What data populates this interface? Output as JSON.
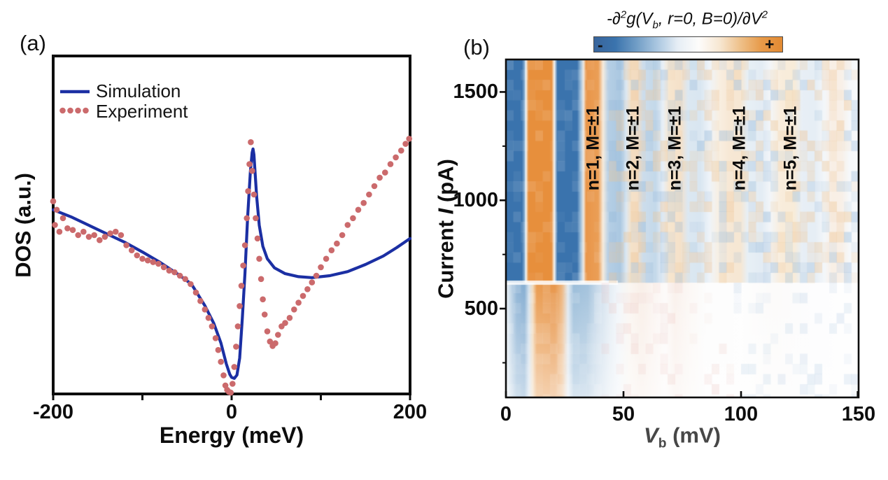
{
  "figure": {
    "panel_a_label": "(a)",
    "panel_b_label": "(b)",
    "background": "#ffffff"
  },
  "panel_a": {
    "xlabel": "Energy (meV)",
    "ylabel": "DOS (a.u.)",
    "x_tick_labels": [
      "-200",
      "0",
      "200"
    ],
    "legend": [
      {
        "label": "Simulation",
        "style": "solid-line",
        "color": "#1b2fa3"
      },
      {
        "label": "Experiment",
        "style": "dotted",
        "color": "#cb6a6c"
      }
    ]
  },
  "panel_b": {
    "ylabel_pre": "Current ",
    "ylabel_var": "I",
    "ylabel_unit": " (pA)",
    "xlabel_var": "V",
    "xlabel_sub": "b",
    "xlabel_unit": " (mV)",
    "x_tick_labels": [
      "0",
      "50",
      "100",
      "150"
    ],
    "y_tick_labels": [
      "1500",
      "1000",
      "500"
    ],
    "colorbar": {
      "t1": "-∂",
      "t1_sup": "2",
      "t2": "g(V",
      "t2_sub": "b",
      "t3": ", r=0, B=0)/∂V",
      "t3_sup": "2",
      "minus": "-",
      "plus": "+",
      "gradient": [
        "#39659c",
        "#3a73ad",
        "#6f9cc5",
        "#a9c6e0",
        "#e6eef5",
        "#fdfcfb",
        "#f7e7d2",
        "#eec089",
        "#e79a49",
        "#e28a33"
      ]
    }
  },
  "chart_data": [
    {
      "type": "line",
      "panel": "a",
      "xlabel": "Energy (meV)",
      "ylabel": "DOS (a.u.)",
      "xlim": [
        -200,
        200
      ],
      "ylim": [
        0,
        1
      ],
      "x_ticks": [
        -200,
        -100,
        0,
        100,
        200
      ],
      "x_tick_labelled": [
        -200,
        0,
        200
      ],
      "legend_position": "top-left",
      "series": [
        {
          "name": "Simulation",
          "style": "solid",
          "color": "#1b2fa3",
          "width": 4.2,
          "x": [
            -200,
            -180,
            -160,
            -140,
            -120,
            -100,
            -80,
            -60,
            -45,
            -30,
            -20,
            -12,
            -6,
            -2,
            0,
            3,
            6,
            9,
            12,
            15,
            18,
            21,
            23,
            24,
            25,
            26,
            28,
            31,
            35,
            40,
            48,
            60,
            75,
            90,
            110,
            130,
            150,
            170,
            185,
            200
          ],
          "y": [
            0.545,
            0.524,
            0.499,
            0.474,
            0.449,
            0.42,
            0.389,
            0.354,
            0.325,
            0.261,
            0.209,
            0.151,
            0.089,
            0.058,
            0.049,
            0.046,
            0.056,
            0.106,
            0.224,
            0.358,
            0.524,
            0.658,
            0.714,
            0.725,
            0.708,
            0.669,
            0.586,
            0.499,
            0.437,
            0.4,
            0.373,
            0.356,
            0.347,
            0.344,
            0.35,
            0.362,
            0.383,
            0.408,
            0.433,
            0.46
          ]
        },
        {
          "name": "Experiment",
          "style": "dotted",
          "color": "#cb6a6c",
          "dot_radius": 4.3,
          "x": [
            -200,
            -198,
            -196,
            -193,
            -189,
            -184,
            -178,
            -172,
            -166,
            -160,
            -154,
            -148,
            -142,
            -136,
            -130,
            -124,
            -118,
            -112,
            -106,
            -100,
            -94,
            -88,
            -82,
            -76,
            -70,
            -64,
            -58,
            -52,
            -46,
            -40,
            -35,
            -30,
            -26,
            -22,
            -18,
            -15,
            -12,
            -9,
            -7,
            -5,
            -3,
            -1,
            1,
            3,
            5,
            7,
            9,
            11,
            13,
            15,
            17,
            18.5,
            20,
            21.5,
            23,
            25,
            27,
            29,
            31,
            33,
            35,
            37,
            40,
            43,
            46,
            49,
            52,
            56,
            60,
            65,
            70,
            75,
            80,
            85,
            90,
            95,
            100,
            106,
            112,
            118,
            124,
            130,
            136,
            142,
            148,
            154,
            160,
            166,
            172,
            178,
            184,
            190,
            195,
            199
          ],
          "y": [
            0.57,
            0.5,
            0.545,
            0.48,
            0.52,
            0.49,
            0.485,
            0.47,
            0.48,
            0.465,
            0.47,
            0.455,
            0.465,
            0.475,
            0.48,
            0.47,
            0.44,
            0.425,
            0.41,
            0.4,
            0.395,
            0.39,
            0.385,
            0.375,
            0.365,
            0.36,
            0.35,
            0.34,
            0.325,
            0.3,
            0.275,
            0.25,
            0.225,
            0.2,
            0.165,
            0.13,
            0.095,
            0.055,
            0.025,
            0.012,
            0.006,
            0.004,
            0.03,
            0.08,
            0.14,
            0.2,
            0.26,
            0.32,
            0.38,
            0.44,
            0.52,
            0.6,
            0.68,
            0.745,
            0.66,
            0.59,
            0.52,
            0.46,
            0.4,
            0.34,
            0.28,
            0.235,
            0.185,
            0.155,
            0.142,
            0.15,
            0.175,
            0.2,
            0.21,
            0.225,
            0.25,
            0.27,
            0.29,
            0.31,
            0.33,
            0.35,
            0.375,
            0.4,
            0.425,
            0.445,
            0.47,
            0.5,
            0.52,
            0.545,
            0.565,
            0.59,
            0.615,
            0.64,
            0.655,
            0.68,
            0.7,
            0.72,
            0.74,
            0.755
          ]
        }
      ]
    },
    {
      "type": "heatmap",
      "panel": "b",
      "colorbar_title": "-∂²g(V_b, r=0, B=0)/∂V²",
      "colorbar_scale": {
        "left": "-",
        "right": "+"
      },
      "xlabel": "V_b (mV)",
      "ylabel": "Current I (pA)",
      "xlim": [
        0,
        150
      ],
      "ylim": [
        90,
        1650
      ],
      "x_ticks": [
        0,
        50,
        100,
        150
      ],
      "y_ticks": [
        1500,
        1000,
        500
      ],
      "y_minor_ticks": [
        1250,
        750,
        250
      ],
      "regime_transition_pA": 620,
      "label_center_pA": 1240,
      "resonance_labels": [
        {
          "text": "n=1, M=±1",
          "x_mV": 37.2
        },
        {
          "text": "n=2, M=±1",
          "x_mV": 54.2
        },
        {
          "text": "n=3, M=±1",
          "x_mV": 72.0
        },
        {
          "text": "n=4, M=±1",
          "x_mV": 99.4
        },
        {
          "text": "n=5, M=±1",
          "x_mV": 121.1
        }
      ],
      "band_profile_high_current": [
        [
          0,
          "#3a73ad"
        ],
        [
          6.8,
          "#3a73ad"
        ],
        [
          7.8,
          "#7ea7cc"
        ],
        [
          8.5,
          "#f0f6fa"
        ],
        [
          9.6,
          "#e78f3c"
        ],
        [
          19.4,
          "#e78f3c"
        ],
        [
          20.6,
          "#f8f6f2"
        ],
        [
          21.9,
          "#3a73ad"
        ],
        [
          30.3,
          "#3a73ad"
        ],
        [
          31.8,
          "#9dbeda"
        ],
        [
          33.0,
          "#eee9e3"
        ],
        [
          34.1,
          "#e9964a"
        ],
        [
          39.3,
          "#eb9f57"
        ],
        [
          41.3,
          "#f7ebdc"
        ],
        [
          43.4,
          "#b6cfe5"
        ],
        [
          48.6,
          "#abc8e1"
        ],
        [
          51.2,
          "#dde8f2"
        ],
        [
          53.2,
          "#f5e2c9"
        ],
        [
          55.9,
          "#f4dfc7"
        ],
        [
          58.3,
          "#cdddec"
        ],
        [
          63.7,
          "#c4d9ea"
        ],
        [
          66.8,
          "#e9f0f7"
        ],
        [
          69.4,
          "#f7e6cf"
        ],
        [
          74.3,
          "#f5e1c9"
        ],
        [
          77.4,
          "#dce8f2"
        ],
        [
          82.7,
          "#d9e6f1"
        ],
        [
          86.6,
          "#eff4f9"
        ],
        [
          90.8,
          "#f9efe1"
        ],
        [
          95.2,
          "#f7e8d5"
        ],
        [
          99.8,
          "#f6e7d3"
        ],
        [
          102.8,
          "#e8f0f6"
        ],
        [
          108.6,
          "#e3ecf4"
        ],
        [
          112.4,
          "#f3f6f9"
        ],
        [
          116.8,
          "#f9eddc"
        ],
        [
          122.6,
          "#f8ecd9"
        ],
        [
          125.8,
          "#e8eff6"
        ],
        [
          131.5,
          "#e6eef5"
        ],
        [
          135.5,
          "#f4f7fa"
        ],
        [
          138.8,
          "#f9efe5"
        ],
        [
          142.8,
          "#f8f0e8"
        ],
        [
          146,
          "#f6f8fa"
        ],
        [
          150,
          "#f8fafc"
        ]
      ],
      "band_profile_low_current": [
        [
          0,
          "#eef3f8"
        ],
        [
          1.8,
          "#cadceb"
        ],
        [
          4.6,
          "#90b5d6"
        ],
        [
          7.9,
          "#86aed2"
        ],
        [
          9.8,
          "#d6e3ee"
        ],
        [
          11.4,
          "#f2dabc"
        ],
        [
          13.1,
          "#ea9c51"
        ],
        [
          20.8,
          "#e8964a"
        ],
        [
          23.8,
          "#eeb67f"
        ],
        [
          26.4,
          "#dfe9f2"
        ],
        [
          28.8,
          "#9cbeda"
        ],
        [
          34.8,
          "#a4c3dd"
        ],
        [
          38.8,
          "#c8daea"
        ],
        [
          43.8,
          "#e3ecf4"
        ],
        [
          47.8,
          "#f2f6fa"
        ],
        [
          52.8,
          "#fbf6f1"
        ],
        [
          57.8,
          "#f9efe8"
        ],
        [
          62,
          "#fbf4f0"
        ],
        [
          67.8,
          "#fdfbfa"
        ],
        [
          71.8,
          "#faf1ec"
        ],
        [
          77.8,
          "#fcf8f5"
        ],
        [
          85,
          "#fdfdfd"
        ],
        [
          100,
          "#fefefe"
        ],
        [
          114,
          "#fcfbfa"
        ],
        [
          130,
          "#fdfdfe"
        ],
        [
          150,
          "#ffffff"
        ]
      ]
    }
  ]
}
